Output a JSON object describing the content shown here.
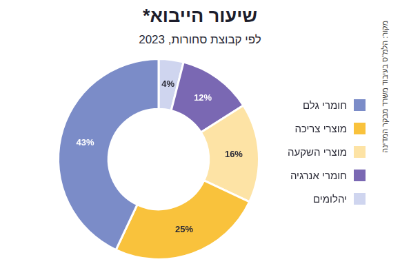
{
  "chart_data": {
    "type": "doughnut",
    "title": "שיעור הייבוא*",
    "subtitle": "לפי קבוצת סחורות, 2023",
    "source": "מקור: הלמ\"ס בעיבוד משרד מבקר המדינה",
    "categories": [
      "חומרי גלם",
      "מוצרי צריכה",
      "מוצרי השקעה",
      "חומרי אנרגיה",
      "יהלומים"
    ],
    "values": [
      43,
      25,
      16,
      12,
      4
    ],
    "value_labels": [
      "43%",
      "25%",
      "16%",
      "12%",
      "4%"
    ],
    "colors": [
      "#7b8cc8",
      "#f9c23c",
      "#fde3a5",
      "#7a68b3",
      "#cfd5ef"
    ],
    "legend": "right",
    "data_labels": true
  }
}
